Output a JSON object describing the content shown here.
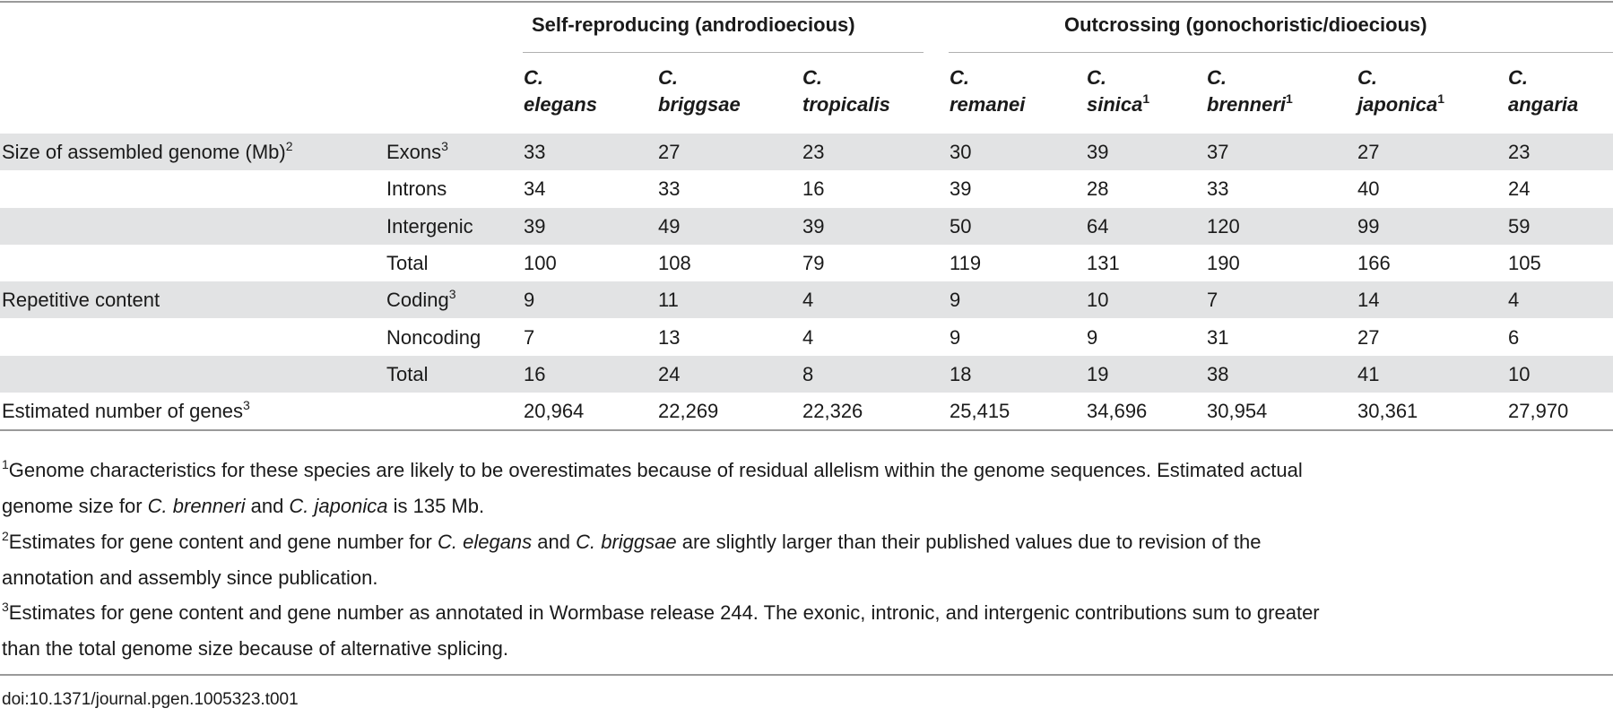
{
  "groups": [
    {
      "label": "Self-reproducing (androdioecious)"
    },
    {
      "label": "Outcrossing (gonochoristic/dioecious)"
    }
  ],
  "species": [
    {
      "genus": "C.",
      "name": "elegans",
      "note": ""
    },
    {
      "genus": "C.",
      "name": "briggsae",
      "note": ""
    },
    {
      "genus": "C.",
      "name": "tropicalis",
      "note": ""
    },
    {
      "genus": "C.",
      "name": "remanei",
      "note": ""
    },
    {
      "genus": "C.",
      "name": "sinica",
      "note": "1"
    },
    {
      "genus": "C.",
      "name": "brenneri",
      "note": "1"
    },
    {
      "genus": "C.",
      "name": "japonica",
      "note": "1"
    },
    {
      "genus": "C.",
      "name": "angaria",
      "note": ""
    }
  ],
  "rows": [
    {
      "category": "Size of assembled genome (Mb)",
      "category_note": "2",
      "sub": "Exons",
      "sub_note": "3",
      "values": [
        "33",
        "27",
        "23",
        "30",
        "39",
        "37",
        "27",
        "23"
      ]
    },
    {
      "category": "",
      "category_note": "",
      "sub": "Introns",
      "sub_note": "",
      "values": [
        "34",
        "33",
        "16",
        "39",
        "28",
        "33",
        "40",
        "24"
      ]
    },
    {
      "category": "",
      "category_note": "",
      "sub": "Intergenic",
      "sub_note": "",
      "values": [
        "39",
        "49",
        "39",
        "50",
        "64",
        "120",
        "99",
        "59"
      ]
    },
    {
      "category": "",
      "category_note": "",
      "sub": "Total",
      "sub_note": "",
      "values": [
        "100",
        "108",
        "79",
        "119",
        "131",
        "190",
        "166",
        "105"
      ]
    },
    {
      "category": "Repetitive content",
      "category_note": "",
      "sub": "Coding",
      "sub_note": "3",
      "values": [
        "9",
        "11",
        "4",
        "9",
        "10",
        "7",
        "14",
        "4"
      ]
    },
    {
      "category": "",
      "category_note": "",
      "sub": "Noncoding",
      "sub_note": "",
      "values": [
        "7",
        "13",
        "4",
        "9",
        "9",
        "31",
        "27",
        "6"
      ]
    },
    {
      "category": "",
      "category_note": "",
      "sub": "Total",
      "sub_note": "",
      "values": [
        "16",
        "24",
        "8",
        "18",
        "19",
        "38",
        "41",
        "10"
      ]
    },
    {
      "category": "Estimated number of genes",
      "category_note": "3",
      "sub": "",
      "sub_note": "",
      "values": [
        "20,964",
        "22,269",
        "22,326",
        "25,415",
        "34,696",
        "30,954",
        "30,361",
        "27,970"
      ]
    }
  ],
  "footnotes": {
    "n1": {
      "mark": "1",
      "line1": "Genome characteristics for these species are likely to be overestimates because of residual allelism within the genome sequences. Estimated actual",
      "line2_a": "genome size for ",
      "line2_sp1": "C. brenneri",
      "line2_b": " and ",
      "line2_sp2": "C. japonica",
      "line2_c": " is 135 Mb."
    },
    "n2": {
      "mark": "2",
      "line1_a": "Estimates for gene content and gene number for ",
      "line1_sp1": "C. elegans",
      "line1_b": " and ",
      "line1_sp2": "C. briggsae",
      "line1_c": " are slightly larger than their published values due to revision of the",
      "line2": "annotation and assembly since publication."
    },
    "n3": {
      "mark": "3",
      "line1": "Estimates for gene content and gene number as annotated in Wormbase release 244. The exonic, intronic, and intergenic contributions sum to greater",
      "line2": "than the total genome size because of alternative splicing."
    }
  },
  "doi": "doi:10.1371/journal.pgen.1005323.t001"
}
